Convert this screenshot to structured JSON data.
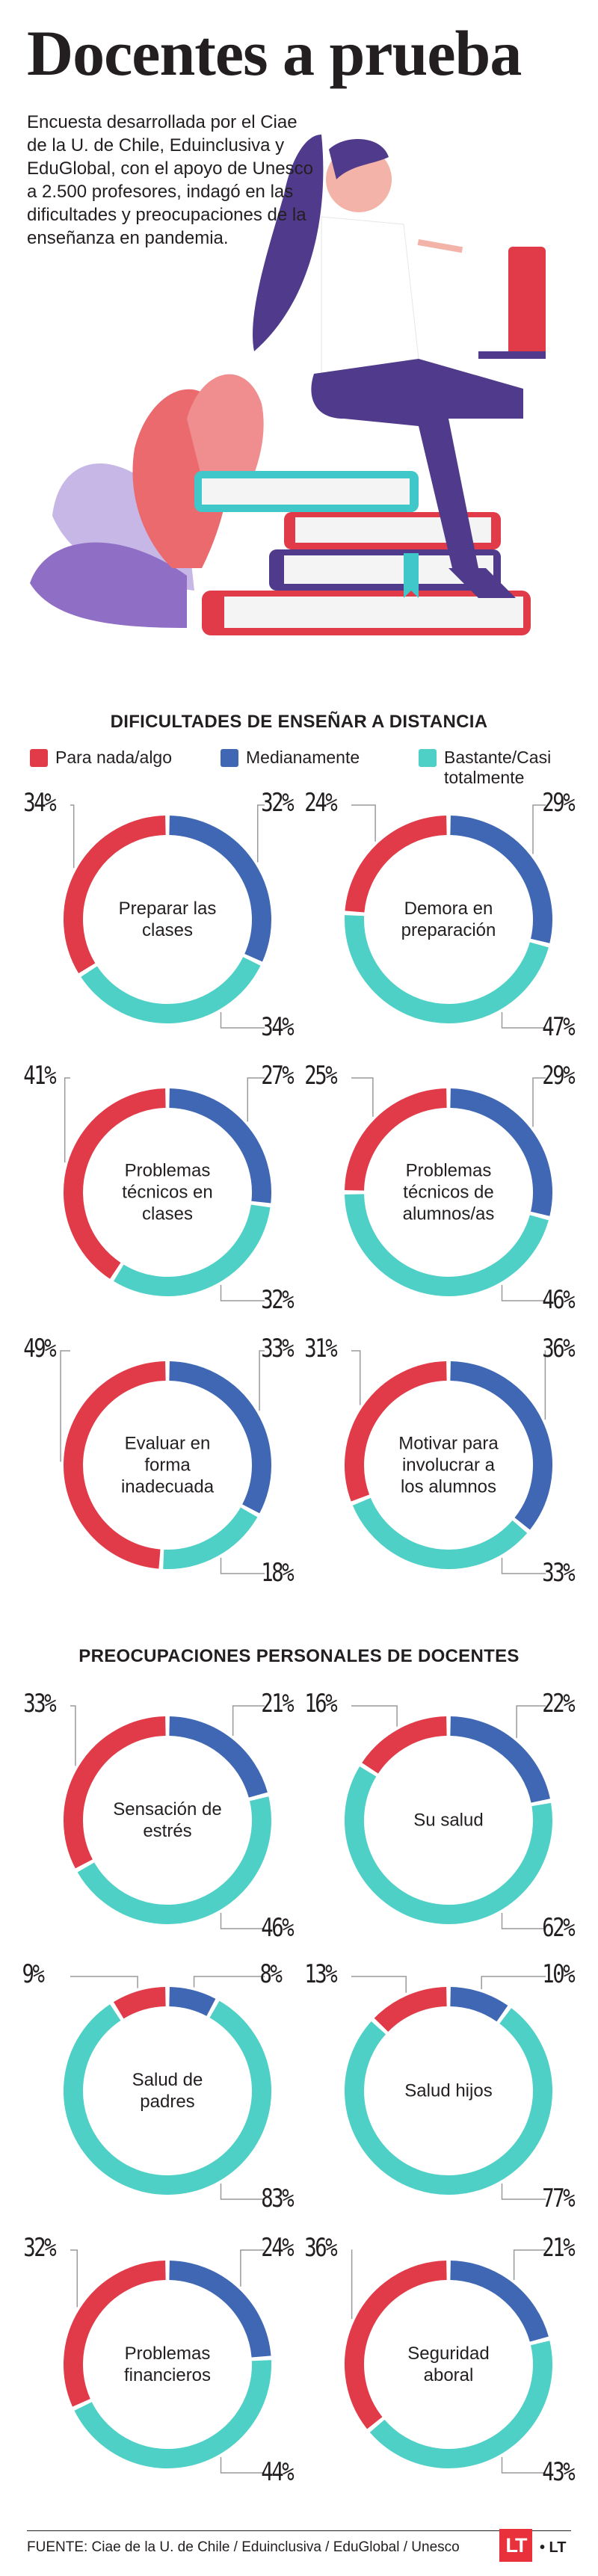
{
  "title": "Docentes a prueba",
  "intro": "Encuesta desarrollada por el Ciae de la U. de Chile, Eduinclusiva y EduGlobal, con el apoyo de Unesco a 2.500 profesores, indagó en las dificultades y preocupaciones de la enseñanza en pandemia.",
  "colors": {
    "red": "#e13a48",
    "blue": "#3f67b4",
    "teal": "#4fd0c6",
    "text": "#231f20"
  },
  "sections": [
    {
      "title": "DIFICULTADES DE ENSEÑAR A DISTANCIA"
    },
    {
      "title": "PREOCUPACIONES PERSONALES DE DOCENTES"
    }
  ],
  "legend": [
    {
      "label": "Para nada/algo",
      "color": "#e13a48"
    },
    {
      "label": "Medianamente",
      "color": "#3f67b4"
    },
    {
      "label": "Bastante/Casi totalmente",
      "color": "#4fd0c6"
    }
  ],
  "chart_data": [
    {
      "type": "pie",
      "label": "Preparar las clases",
      "categories": [
        "Para nada/algo",
        "Medianamente",
        "Bastante/Casi totalmente"
      ],
      "values": [
        34,
        32,
        34
      ],
      "labels": [
        "34%",
        "32%",
        "34%"
      ]
    },
    {
      "type": "pie",
      "label": "Demora en preparación",
      "categories": [
        "Para nada/algo",
        "Medianamente",
        "Bastante/Casi totalmente"
      ],
      "values": [
        24,
        29,
        47
      ],
      "labels": [
        "24%",
        "29%",
        "47%"
      ]
    },
    {
      "type": "pie",
      "label": "Problemas técnicos en clases",
      "categories": [
        "Para nada/algo",
        "Medianamente",
        "Bastante/Casi totalmente"
      ],
      "values": [
        41,
        27,
        32
      ],
      "labels": [
        "41%",
        "27%",
        "32%"
      ]
    },
    {
      "type": "pie",
      "label": "Problemas técnicos de alumnos/as",
      "categories": [
        "Para nada/algo",
        "Medianamente",
        "Bastante/Casi totalmente"
      ],
      "values": [
        25,
        29,
        46
      ],
      "labels": [
        "25%",
        "29%",
        "46%"
      ]
    },
    {
      "type": "pie",
      "label": "Evaluar en forma inadecuada",
      "categories": [
        "Para nada/algo",
        "Medianamente",
        "Bastante/Casi totalmente"
      ],
      "values": [
        49,
        33,
        18
      ],
      "labels": [
        "49%",
        "33%",
        "18%"
      ]
    },
    {
      "type": "pie",
      "label": "Motivar para involucrar a los alumnos",
      "categories": [
        "Para nada/algo",
        "Medianamente",
        "Bastante/Casi totalmente"
      ],
      "values": [
        31,
        36,
        33
      ],
      "labels": [
        "31%",
        "36%",
        "33%"
      ]
    },
    {
      "type": "pie",
      "label": "Sensación de estrés",
      "categories": [
        "Para nada/algo",
        "Medianamente",
        "Bastante/Casi totalmente"
      ],
      "values": [
        33,
        21,
        46
      ],
      "labels": [
        "33%",
        "21%",
        "46%"
      ]
    },
    {
      "type": "pie",
      "label": "Su salud",
      "categories": [
        "Para nada/algo",
        "Medianamente",
        "Bastante/Casi totalmente"
      ],
      "values": [
        16,
        22,
        62
      ],
      "labels": [
        "16%",
        "22%",
        "62%"
      ]
    },
    {
      "type": "pie",
      "label": "Salud de padres",
      "categories": [
        "Para nada/algo",
        "Medianamente",
        "Bastante/Casi totalmente"
      ],
      "values": [
        9,
        8,
        83
      ],
      "labels": [
        "9%",
        "8%",
        "83%"
      ]
    },
    {
      "type": "pie",
      "label": "Salud hijos",
      "categories": [
        "Para nada/algo",
        "Medianamente",
        "Bastante/Casi totalmente"
      ],
      "values": [
        13,
        10,
        77
      ],
      "labels": [
        "13%",
        "10%",
        "77%"
      ]
    },
    {
      "type": "pie",
      "label": "Problemas financieros",
      "categories": [
        "Para nada/algo",
        "Medianamente",
        "Bastante/Casi totalmente"
      ],
      "values": [
        32,
        24,
        44
      ],
      "labels": [
        "32%",
        "24%",
        "44%"
      ]
    },
    {
      "type": "pie",
      "label": "Seguridad aboral",
      "categories": [
        "Para nada/algo",
        "Medianamente",
        "Bastante/Casi totalmente"
      ],
      "values": [
        36,
        21,
        43
      ],
      "labels": [
        "36%",
        "21%",
        "43%"
      ]
    }
  ],
  "footer": {
    "source": "FUENTE: Ciae de la U. de Chile / Eduinclusiva / EduGlobal / Unesco",
    "logo": "LT",
    "logo_text": "• LT"
  }
}
